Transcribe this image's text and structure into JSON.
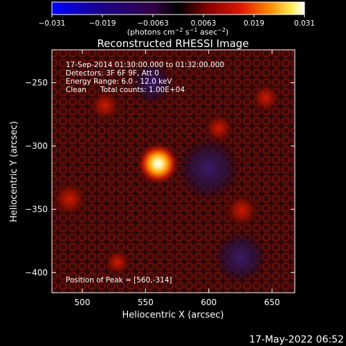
{
  "chart_data": {
    "type": "heatmap",
    "title": "Reconstructed RHESSI Image",
    "colorbar": {
      "ticks": [
        "−0.031",
        "−0.019",
        "−0.0063",
        "0.0063",
        "0.019",
        "0.031"
      ],
      "range": [
        -0.031,
        0.031
      ],
      "unit_prefix": "(photons cm",
      "unit_exp1": "−2",
      "unit_mid": " s",
      "unit_exp2": "−1",
      "unit_mid2": " asec",
      "unit_exp3": "−2",
      "unit_suffix": ")"
    },
    "info": {
      "line1": "17-Sep-2014 01:30:00.000 to 01:32:00.000",
      "line2": "Detectors: 3F 6F 9F, Att 0",
      "line3": "Energy Range: 6.0 - 12.0 keV",
      "line4_a": "Clean",
      "line4_b": "Total counts: 1.00E+04",
      "peak": "Position of Peak = [560,-314]"
    },
    "xlabel": "Heliocentric X (arcsec)",
    "ylabel": "Heliocentric Y (arcsec)",
    "xlim": [
      476,
      668
    ],
    "ylim": [
      -416,
      -224
    ],
    "xticks": [
      500,
      550,
      600,
      650
    ],
    "yticks": [
      -250,
      -300,
      -350,
      -400
    ],
    "xtick_labels": [
      "500",
      "550",
      "600",
      "650"
    ],
    "ytick_labels": [
      "−250",
      "−300",
      "−350",
      "−400"
    ],
    "sources": [
      {
        "x": 560,
        "y": -314,
        "intensity": 0.031
      },
      {
        "x": 490,
        "y": -342,
        "intensity": 0.012
      },
      {
        "x": 626,
        "y": -351,
        "intensity": 0.011
      },
      {
        "x": 518,
        "y": -268,
        "intensity": 0.009
      },
      {
        "x": 608,
        "y": -286,
        "intensity": 0.008
      },
      {
        "x": 645,
        "y": -262,
        "intensity": 0.008
      },
      {
        "x": 528,
        "y": -392,
        "intensity": 0.006
      }
    ],
    "negative_regions": [
      {
        "x": 600,
        "y": -318,
        "intensity": -0.006
      },
      {
        "x": 625,
        "y": -388,
        "intensity": -0.005
      },
      {
        "x": 555,
        "y": -250,
        "intensity": -0.004
      }
    ]
  },
  "timestamp": "17-May-2022 06:52"
}
